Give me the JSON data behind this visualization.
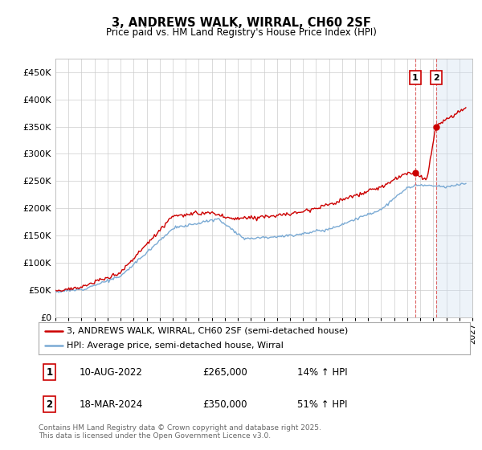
{
  "title": "3, ANDREWS WALK, WIRRAL, CH60 2SF",
  "subtitle": "Price paid vs. HM Land Registry's House Price Index (HPI)",
  "ytick_values": [
    0,
    50000,
    100000,
    150000,
    200000,
    250000,
    300000,
    350000,
    400000,
    450000
  ],
  "ylim": [
    0,
    475000
  ],
  "xlim_start": 1995.0,
  "xlim_end": 2027.0,
  "hpi_color": "#7aaad4",
  "price_color": "#cc0000",
  "vline_color": "#dd6666",
  "shade_color": "#ccddf0",
  "marker1_x": 2022.61,
  "marker1_y": 265000,
  "marker2_x": 2024.21,
  "marker2_y": 350000,
  "legend_line1": "3, ANDREWS WALK, WIRRAL, CH60 2SF (semi-detached house)",
  "legend_line2": "HPI: Average price, semi-detached house, Wirral",
  "ann1_date": "10-AUG-2022",
  "ann1_price": "£265,000",
  "ann1_hpi": "14% ↑ HPI",
  "ann2_date": "18-MAR-2024",
  "ann2_price": "£350,000",
  "ann2_hpi": "51% ↑ HPI",
  "footer": "Contains HM Land Registry data © Crown copyright and database right 2025.\nThis data is licensed under the Open Government Licence v3.0.",
  "background_color": "#ffffff",
  "grid_color": "#cccccc"
}
